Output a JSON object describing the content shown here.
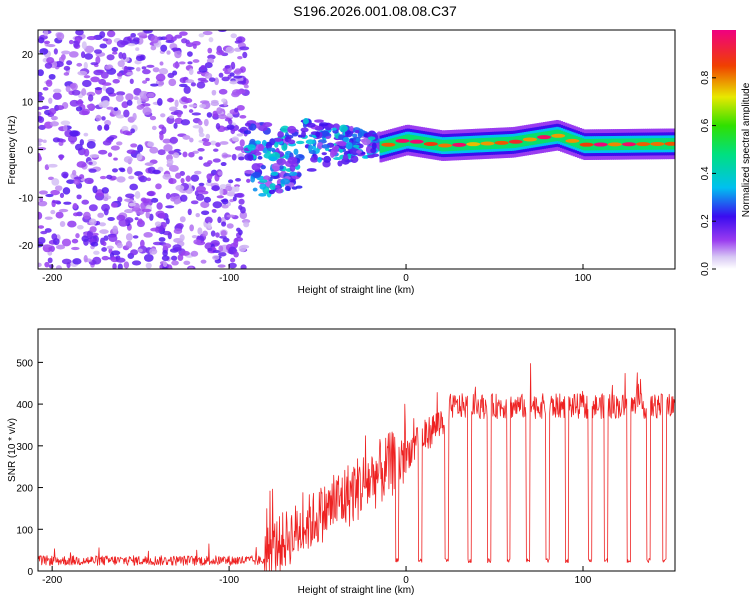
{
  "title": "S196.2026.001.08.08.C37",
  "chart_data": [
    {
      "type": "heatmap",
      "xlabel": "Height of straight line (km)",
      "ylabel": "Frequency (Hz)",
      "xlim": [
        -208,
        152
      ],
      "ylim": [
        -25,
        25
      ],
      "xticks": [
        -200,
        -100,
        0,
        100
      ],
      "yticks": [
        -20,
        -10,
        0,
        10,
        20
      ],
      "colorbar": {
        "label": "Normalized spectral amplitude",
        "range": [
          0,
          1
        ],
        "ticks": [
          0.0,
          0.2,
          0.4,
          0.6,
          0.8
        ],
        "tick_labels": [
          "0.0",
          "0.2",
          "0.4",
          "0.6",
          "0.8"
        ]
      },
      "features": [
        {
          "region": "noise",
          "x_range": [
            -208,
            -90
          ],
          "freq_range": [
            -25,
            25
          ],
          "amplitude": [
            0.05,
            0.2
          ]
        },
        {
          "region": "transition",
          "x_range": [
            -90,
            -15
          ],
          "freq_range": [
            -8,
            10
          ],
          "amplitude": [
            0.1,
            0.4
          ]
        },
        {
          "region": "carrier",
          "x_range": [
            -15,
            152
          ],
          "frequency": [
            [
              -15,
              0.5
            ],
            [
              0,
              2.0
            ],
            [
              20,
              0.8
            ],
            [
              60,
              1.5
            ],
            [
              85,
              3.0
            ],
            [
              100,
              1.0
            ],
            [
              152,
              1.2
            ]
          ],
          "amplitude": [
            0.4,
            1.0
          ]
        }
      ]
    },
    {
      "type": "line",
      "xlabel": "Height of straight line (km)",
      "ylabel": "SNR (10 * v/v)",
      "xlim": [
        -208,
        152
      ],
      "ylim": [
        0,
        580
      ],
      "xticks": [
        -200,
        -100,
        0,
        100
      ],
      "yticks": [
        0,
        100,
        200,
        300,
        400,
        500
      ],
      "series": [
        {
          "name": "SNR",
          "color": "#ee2222",
          "segments": [
            {
              "x_range": [
                -208,
                -80
              ],
              "level": 25,
              "noise": 12
            },
            {
              "x_range": [
                -80,
                -40
              ],
              "level_from": 40,
              "level_to": 160,
              "noise": 70
            },
            {
              "x_range": [
                -40,
                0
              ],
              "level_from": 160,
              "level_to": 280,
              "noise": 80
            },
            {
              "x_range": [
                0,
                25
              ],
              "level_from": 280,
              "level_to": 380,
              "noise": 40
            },
            {
              "x_range": [
                25,
                152
              ],
              "level": 395,
              "noise": 30
            }
          ],
          "dropouts_x": [
            -5,
            8,
            23,
            36,
            47,
            58,
            69,
            80,
            91,
            104,
            113,
            126,
            137,
            146
          ],
          "dropout_level": 20
        }
      ]
    }
  ]
}
